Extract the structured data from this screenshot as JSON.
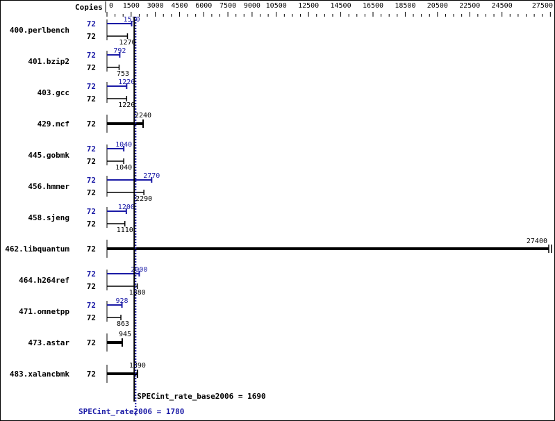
{
  "chart_data": {
    "type": "bar",
    "orientation": "horizontal",
    "axis_header": "Copies",
    "xlim": [
      0,
      27500
    ],
    "x_tick_labels": [
      0,
      1500,
      3000,
      4500,
      6000,
      7500,
      9000,
      10500,
      12500,
      14500,
      16500,
      18500,
      20500,
      22500,
      24500,
      27500
    ],
    "colors": {
      "peak": "#1a1aa6",
      "base": "#000000"
    },
    "benchmarks": [
      {
        "name": "400.perlbench",
        "peak_copies": "72",
        "peak": 1530,
        "base_copies": "72",
        "base": 1270
      },
      {
        "name": "401.bzip2",
        "peak_copies": "72",
        "peak": 792,
        "base_copies": "72",
        "base": 753
      },
      {
        "name": "403.gcc",
        "peak_copies": "72",
        "peak": 1220,
        "base_copies": "72",
        "base": 1220
      },
      {
        "name": "429.mcf",
        "base_copies": "72",
        "base": 2240
      },
      {
        "name": "445.gobmk",
        "peak_copies": "72",
        "peak": 1040,
        "base_copies": "72",
        "base": 1040
      },
      {
        "name": "456.hmmer",
        "peak_copies": "72",
        "peak": 2770,
        "base_copies": "72",
        "base": 2290
      },
      {
        "name": "458.sjeng",
        "peak_copies": "72",
        "peak": 1200,
        "base_copies": "72",
        "base": 1110
      },
      {
        "name": "462.libquantum",
        "base_copies": "72",
        "base": 27400
      },
      {
        "name": "464.h264ref",
        "peak_copies": "72",
        "peak": 2000,
        "base_copies": "72",
        "base": 1880
      },
      {
        "name": "471.omnetpp",
        "peak_copies": "72",
        "peak": 928,
        "base_copies": "72",
        "base": 863
      },
      {
        "name": "473.astar",
        "base_copies": "72",
        "base": 945
      },
      {
        "name": "483.xalancbmk",
        "base_copies": "72",
        "base": 1890
      }
    ],
    "base_metric": {
      "label": "SPECint_rate_base2006 = 1690",
      "value": 1690
    },
    "peak_metric": {
      "label": "SPECint_rate2006 = 1780",
      "value": 1780
    }
  }
}
